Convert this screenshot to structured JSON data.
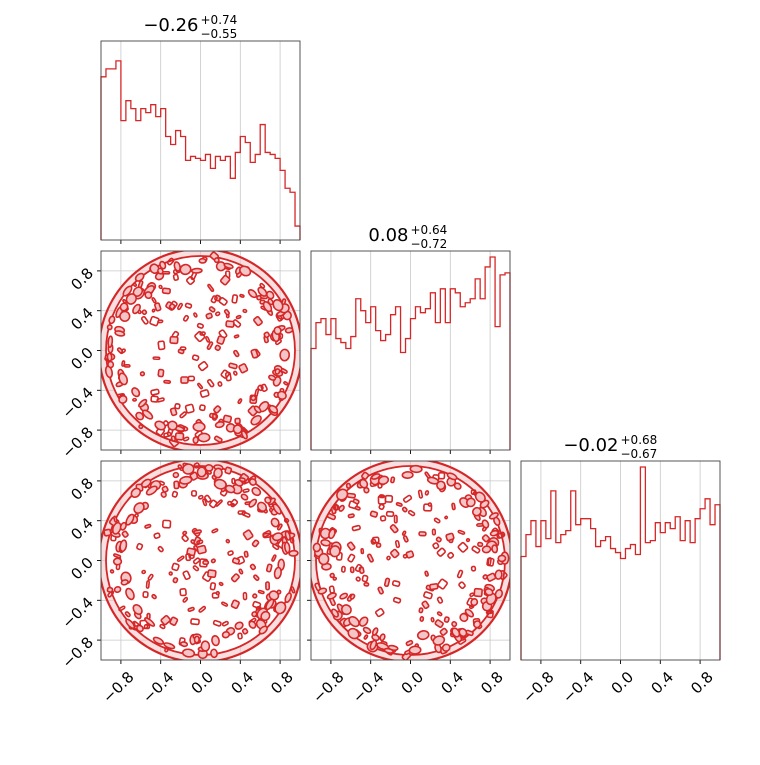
{
  "chart_data": {
    "type": "corner",
    "color": "#d62728",
    "contour_fill_color": "#f4c5c6",
    "grid": true,
    "xlim": [
      -1.0,
      1.0
    ],
    "ylim": [
      -1.0,
      1.0
    ],
    "hist_ylim": [
      0,
      1.0
    ],
    "ticks": [
      -0.8,
      -0.4,
      0.0,
      0.4,
      0.8
    ],
    "tick_labels": [
      "−0.8",
      "−0.4",
      "0.0",
      "0.4",
      "0.8"
    ],
    "titles": [
      {
        "median": "−0.26",
        "plus": "+0.74",
        "minus": "−0.55"
      },
      {
        "median": "0.08",
        "plus": "+0.64",
        "minus": "−0.72"
      },
      {
        "median": "−0.02",
        "plus": "+0.68",
        "minus": "−0.67"
      }
    ],
    "histograms": [
      {
        "bins": 40,
        "values": [
          0.82,
          0.86,
          0.86,
          0.9,
          0.6,
          0.7,
          0.66,
          0.6,
          0.66,
          0.64,
          0.68,
          0.62,
          0.66,
          0.52,
          0.48,
          0.55,
          0.52,
          0.4,
          0.42,
          0.41,
          0.4,
          0.43,
          0.36,
          0.42,
          0.4,
          0.42,
          0.31,
          0.44,
          0.52,
          0.49,
          0.39,
          0.43,
          0.58,
          0.44,
          0.43,
          0.41,
          0.35,
          0.26,
          0.24,
          0.07
        ]
      },
      {
        "bins": 40,
        "values": [
          0.51,
          0.64,
          0.66,
          0.58,
          0.66,
          0.56,
          0.54,
          0.51,
          0.57,
          0.76,
          0.7,
          0.64,
          0.72,
          0.6,
          0.55,
          0.58,
          0.68,
          0.72,
          0.49,
          0.56,
          0.66,
          0.72,
          0.69,
          0.71,
          0.79,
          0.64,
          0.81,
          0.64,
          0.81,
          0.79,
          0.72,
          0.74,
          0.76,
          0.86,
          0.76,
          0.92,
          0.97,
          0.62,
          0.88,
          0.89
        ]
      },
      {
        "bins": 40,
        "values": [
          0.52,
          0.63,
          0.7,
          0.57,
          0.7,
          0.61,
          0.85,
          0.59,
          0.63,
          0.65,
          0.85,
          0.68,
          0.71,
          0.71,
          0.66,
          0.57,
          0.6,
          0.62,
          0.56,
          0.54,
          0.51,
          0.56,
          0.58,
          0.53,
          0.97,
          0.59,
          0.6,
          0.69,
          0.64,
          0.69,
          0.66,
          0.72,
          0.6,
          0.7,
          0.59,
          0.71,
          0.76,
          0.81,
          0.68,
          0.78
        ]
      }
    ]
  }
}
